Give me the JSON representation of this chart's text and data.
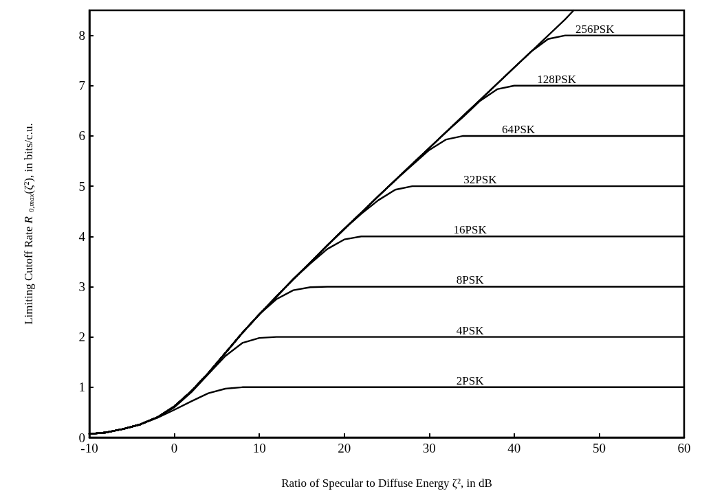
{
  "chart_data": {
    "type": "line",
    "xlabel": "Ratio of Specular to Diffuse Energy ζ², in dB",
    "ylabel": "Limiting Cutoff Rate R$_{0,max}$(ζ²), in bits/c.u.",
    "xlim": [
      -10,
      60
    ],
    "xticks": [
      -10,
      0,
      10,
      20,
      30,
      40,
      50,
      60
    ],
    "ylim": [
      0,
      8.5
    ],
    "yticks": [
      0,
      1,
      2,
      3,
      4,
      5,
      6,
      7,
      8
    ],
    "grid": false,
    "legend": false,
    "marker": "none",
    "line_style": "solid",
    "series": [
      {
        "color": "#000000",
        "x": [
          -10,
          -8,
          -6,
          -4,
          -2,
          0,
          2,
          4,
          6,
          8,
          10,
          12,
          14,
          16,
          18,
          20,
          22,
          24,
          26,
          28,
          30,
          32,
          34,
          36,
          38,
          40,
          42,
          44,
          46,
          47
        ],
        "values": [
          0.07,
          0.1,
          0.17,
          0.26,
          0.4,
          0.62,
          0.92,
          1.28,
          1.68,
          2.08,
          2.45,
          2.8,
          3.15,
          3.48,
          3.82,
          4.15,
          4.47,
          4.8,
          5.12,
          5.44,
          5.76,
          6.08,
          6.4,
          6.72,
          7.04,
          7.36,
          7.68,
          8.0,
          8.32,
          8.5
        ]
      },
      {
        "name": "2PSK",
        "color": "#000000",
        "x": [
          -10,
          -8,
          -6,
          -4,
          -2,
          0,
          2,
          4,
          6,
          8,
          10,
          60
        ],
        "values": [
          0.07,
          0.1,
          0.17,
          0.26,
          0.39,
          0.55,
          0.72,
          0.88,
          0.97,
          1.0,
          1.0,
          1.0
        ]
      },
      {
        "name": "4PSK",
        "color": "#000000",
        "x": [
          -10,
          -8,
          -6,
          -4,
          -2,
          0,
          2,
          4,
          6,
          8,
          10,
          12,
          60
        ],
        "values": [
          0.07,
          0.1,
          0.17,
          0.26,
          0.4,
          0.6,
          0.9,
          1.26,
          1.62,
          1.88,
          1.98,
          2.0,
          2.0
        ]
      },
      {
        "name": "8PSK",
        "color": "#000000",
        "x": [
          -10,
          -8,
          -6,
          -4,
          -2,
          0,
          2,
          4,
          6,
          8,
          10,
          12,
          14,
          16,
          18,
          60
        ],
        "values": [
          0.07,
          0.1,
          0.17,
          0.26,
          0.4,
          0.62,
          0.92,
          1.28,
          1.68,
          2.08,
          2.45,
          2.75,
          2.93,
          2.99,
          3.0,
          3.0
        ]
      },
      {
        "name": "16PSK",
        "color": "#000000",
        "x": [
          -10,
          -8,
          -6,
          -4,
          -2,
          0,
          2,
          4,
          6,
          8,
          10,
          12,
          14,
          16,
          18,
          20,
          22,
          60
        ],
        "values": [
          0.07,
          0.1,
          0.17,
          0.26,
          0.4,
          0.62,
          0.92,
          1.28,
          1.68,
          2.08,
          2.45,
          2.8,
          3.15,
          3.46,
          3.75,
          3.94,
          4.0,
          4.0
        ]
      },
      {
        "name": "32PSK",
        "color": "#000000",
        "x": [
          -10,
          -8,
          -6,
          -4,
          -2,
          0,
          2,
          4,
          6,
          8,
          10,
          12,
          14,
          16,
          18,
          20,
          22,
          24,
          26,
          28,
          60
        ],
        "values": [
          0.07,
          0.1,
          0.17,
          0.26,
          0.4,
          0.62,
          0.92,
          1.28,
          1.68,
          2.08,
          2.45,
          2.8,
          3.15,
          3.48,
          3.82,
          4.15,
          4.45,
          4.72,
          4.93,
          5.0,
          5.0
        ]
      },
      {
        "name": "64PSK",
        "color": "#000000",
        "x": [
          -10,
          -8,
          -6,
          -4,
          -2,
          0,
          2,
          4,
          6,
          8,
          10,
          12,
          14,
          16,
          18,
          20,
          22,
          24,
          26,
          28,
          30,
          32,
          34,
          60
        ],
        "values": [
          0.07,
          0.1,
          0.17,
          0.26,
          0.4,
          0.62,
          0.92,
          1.28,
          1.68,
          2.08,
          2.45,
          2.8,
          3.15,
          3.48,
          3.82,
          4.15,
          4.47,
          4.8,
          5.12,
          5.42,
          5.72,
          5.93,
          6.0,
          6.0
        ]
      },
      {
        "name": "128PSK",
        "color": "#000000",
        "x": [
          -10,
          -8,
          -6,
          -4,
          -2,
          0,
          2,
          4,
          6,
          8,
          10,
          12,
          14,
          16,
          18,
          20,
          22,
          24,
          26,
          28,
          30,
          32,
          34,
          36,
          38,
          40,
          60
        ],
        "values": [
          0.07,
          0.1,
          0.17,
          0.26,
          0.4,
          0.62,
          0.92,
          1.28,
          1.68,
          2.08,
          2.45,
          2.8,
          3.15,
          3.48,
          3.82,
          4.15,
          4.47,
          4.8,
          5.12,
          5.44,
          5.76,
          6.08,
          6.38,
          6.7,
          6.93,
          7.0,
          7.0
        ]
      },
      {
        "name": "256PSK",
        "color": "#000000",
        "x": [
          -10,
          -8,
          -6,
          -4,
          -2,
          0,
          2,
          4,
          6,
          8,
          10,
          12,
          14,
          16,
          18,
          20,
          22,
          24,
          26,
          28,
          30,
          32,
          34,
          36,
          38,
          40,
          42,
          44,
          46,
          60
        ],
        "values": [
          0.07,
          0.1,
          0.17,
          0.26,
          0.4,
          0.62,
          0.92,
          1.28,
          1.68,
          2.08,
          2.45,
          2.8,
          3.15,
          3.48,
          3.82,
          4.15,
          4.47,
          4.8,
          5.12,
          5.44,
          5.76,
          6.08,
          6.4,
          6.72,
          7.04,
          7.36,
          7.68,
          7.93,
          8.0,
          8.0
        ]
      }
    ]
  }
}
